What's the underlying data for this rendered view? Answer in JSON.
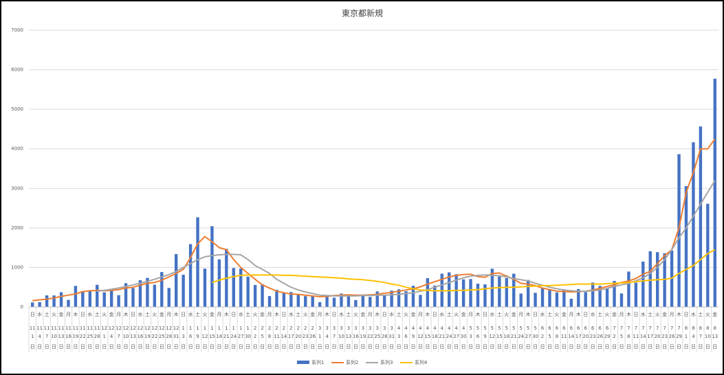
{
  "chart_data": {
    "type": "bar_line",
    "title": "東京都新規",
    "x_weekday": [
      "日",
      "水",
      "土",
      "火",
      "金",
      "月",
      "木",
      "日",
      "水",
      "土",
      "火",
      "金",
      "月",
      "木",
      "日",
      "水",
      "土",
      "火",
      "金",
      "月",
      "木",
      "日",
      "水",
      "土",
      "火",
      "金",
      "月",
      "木",
      "日",
      "水",
      "土",
      "火",
      "金",
      "月",
      "木",
      "日",
      "水",
      "土",
      "火",
      "金",
      "月",
      "木",
      "日",
      "水",
      "土",
      "火",
      "金",
      "月",
      "木",
      "日",
      "水",
      "土",
      "火",
      "金",
      "月",
      "木",
      "日",
      "水",
      "土",
      "火",
      "金",
      "月",
      "木",
      "日",
      "水",
      "土",
      "火",
      "金",
      "月",
      "木",
      "日",
      "水",
      "土",
      "火",
      "金",
      "月",
      "木",
      "日",
      "水",
      "土",
      "火",
      "金",
      "月",
      "木",
      "日",
      "水",
      "土",
      "火",
      "金",
      "月",
      "木",
      "日",
      "水",
      "土",
      "火",
      "金"
    ],
    "x_month": [
      11,
      11,
      11,
      11,
      11,
      11,
      11,
      11,
      11,
      11,
      12,
      12,
      12,
      12,
      12,
      12,
      12,
      12,
      12,
      12,
      12,
      1,
      1,
      1,
      1,
      1,
      1,
      1,
      1,
      1,
      1,
      2,
      2,
      2,
      2,
      2,
      2,
      2,
      2,
      2,
      3,
      3,
      3,
      3,
      3,
      3,
      3,
      3,
      3,
      3,
      3,
      4,
      4,
      4,
      4,
      4,
      4,
      4,
      4,
      4,
      4,
      5,
      5,
      5,
      5,
      5,
      5,
      5,
      5,
      5,
      5,
      6,
      6,
      6,
      6,
      6,
      6,
      6,
      6,
      6,
      6,
      7,
      7,
      7,
      7,
      7,
      7,
      7,
      7,
      7,
      7,
      8,
      8,
      8,
      8,
      8
    ],
    "x_day": [
      1,
      4,
      7,
      10,
      13,
      16,
      19,
      22,
      25,
      28,
      1,
      4,
      7,
      10,
      13,
      16,
      19,
      22,
      25,
      28,
      31,
      3,
      6,
      9,
      12,
      15,
      18,
      21,
      24,
      27,
      30,
      2,
      5,
      8,
      11,
      14,
      17,
      20,
      23,
      26,
      1,
      4,
      7,
      10,
      13,
      16,
      19,
      22,
      25,
      28,
      31,
      3,
      6,
      9,
      12,
      15,
      18,
      21,
      24,
      27,
      30,
      3,
      6,
      9,
      12,
      15,
      18,
      21,
      24,
      27,
      30,
      2,
      5,
      8,
      11,
      14,
      17,
      20,
      23,
      26,
      29,
      2,
      5,
      8,
      11,
      14,
      17,
      20,
      23,
      26,
      29,
      1,
      4,
      7,
      10,
      13
    ],
    "x_suffix": "日",
    "ylim": [
      0,
      7000
    ],
    "yticks": [
      0,
      1000,
      2000,
      3000,
      4000,
      5000,
      6000,
      7000
    ],
    "grid": true,
    "legend": "bottom",
    "series": [
      {
        "name": "系列1",
        "kind": "bar",
        "color": "#4472c4",
        "values": [
          116,
          122,
          294,
          293,
          374,
          180,
          534,
          391,
          401,
          561,
          372,
          449,
          299,
          602,
          480,
          678,
          736,
          563,
          884,
          481,
          1337,
          816,
          1591,
          2268,
          970,
          2044,
          1204,
          1471,
          986,
          973,
          769,
          556,
          577,
          276,
          434,
          371,
          378,
          327,
          275,
          270,
          121,
          279,
          237,
          340,
          304,
          175,
          303,
          256,
          394,
          313,
          414,
          446,
          399,
          537,
          306,
          729,
          543,
          843,
          876,
          828,
          698,
          708,
          591,
          573,
          969,
          772,
          732,
          843,
          340,
          684,
          359,
          471,
          436,
          369,
          435,
          209,
          452,
          376,
          619,
          534,
          476,
          660,
          342,
          896,
          614,
          1149,
          1410,
          1387,
          1359,
          1429,
          3865,
          3058,
          4166,
          4566,
          2612,
          5773
        ]
      },
      {
        "name": "系列2",
        "kind": "line",
        "color": "#ed7d31",
        "values": [
          160,
          180,
          200,
          230,
          270,
          300,
          330,
          390,
          410,
          420,
          410,
          420,
          440,
          480,
          500,
          550,
          600,
          620,
          680,
          760,
          850,
          950,
          1250,
          1600,
          1780,
          1650,
          1500,
          1450,
          1200,
          1000,
          850,
          700,
          560,
          480,
          400,
          360,
          330,
          320,
          300,
          280,
          260,
          270,
          290,
          300,
          310,
          300,
          300,
          310,
          320,
          350,
          370,
          400,
          430,
          460,
          510,
          580,
          640,
          700,
          760,
          800,
          820,
          830,
          770,
          750,
          850,
          860,
          780,
          700,
          600,
          580,
          540,
          480,
          440,
          400,
          390,
          380,
          390,
          400,
          430,
          470,
          520,
          560,
          620,
          660,
          720,
          830,
          900,
          1100,
          1300,
          1450,
          2000,
          2900,
          3400,
          4000,
          4000,
          4250
        ]
      },
      {
        "name": "系列3",
        "kind": "line",
        "color": "#a5a5a5",
        "values": [
          null,
          null,
          null,
          null,
          null,
          null,
          null,
          null,
          null,
          400,
          420,
          450,
          480,
          520,
          560,
          600,
          650,
          700,
          760,
          820,
          900,
          1000,
          1100,
          1200,
          1270,
          1300,
          1320,
          1330,
          1330,
          1320,
          1200,
          1050,
          950,
          850,
          700,
          600,
          500,
          430,
          380,
          340,
          300,
          290,
          280,
          280,
          280,
          280,
          290,
          290,
          300,
          300,
          310,
          320,
          340,
          360,
          400,
          440,
          500,
          560,
          620,
          680,
          740,
          780,
          800,
          810,
          800,
          790,
          760,
          720,
          690,
          660,
          600,
          550,
          500,
          460,
          430,
          410,
          400,
          400,
          410,
          430,
          470,
          520,
          560,
          600,
          660,
          740,
          850,
          1000,
          1200,
          1450,
          1750,
          2000,
          2300,
          2600,
          2900,
          3200
        ]
      },
      {
        "name": "系列4",
        "kind": "line",
        "color": "#ffc000",
        "values": [
          null,
          null,
          null,
          null,
          null,
          null,
          null,
          null,
          null,
          null,
          null,
          null,
          null,
          null,
          null,
          null,
          null,
          null,
          null,
          null,
          null,
          null,
          null,
          null,
          null,
          620,
          680,
          730,
          770,
          800,
          810,
          810,
          810,
          810,
          810,
          800,
          800,
          790,
          780,
          770,
          760,
          750,
          740,
          730,
          710,
          700,
          690,
          670,
          650,
          620,
          580,
          550,
          500,
          460,
          430,
          420,
          410,
          410,
          410,
          420,
          420,
          430,
          440,
          460,
          480,
          490,
          500,
          500,
          510,
          520,
          530,
          540,
          540,
          550,
          560,
          570,
          580,
          580,
          580,
          580,
          590,
          600,
          610,
          620,
          640,
          660,
          680,
          690,
          700,
          730,
          850,
          950,
          1050,
          1200,
          1350,
          1450
        ]
      }
    ]
  }
}
